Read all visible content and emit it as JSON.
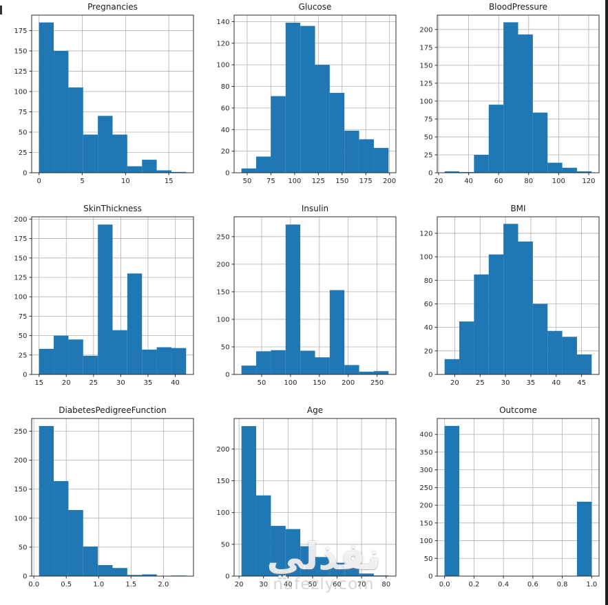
{
  "page": {
    "background": "#ffffff"
  },
  "style": {
    "bar_color": "#1f77b4",
    "grid_color": "#b0b0b0",
    "spine_color": "#2b2b2b",
    "tick_color": "#262626",
    "title_color": "#1a1a1a"
  },
  "watermark": {
    "arabic": "نفذلي",
    "domain": "nafezly.com"
  },
  "chart_data": [
    {
      "type": "bar",
      "title": "Pregnancies",
      "bin_start": 0,
      "bin_end": 17,
      "counts": [
        185,
        150,
        105,
        47,
        70,
        47,
        8,
        16,
        3,
        1
      ],
      "x_ticks": [
        0,
        5,
        10,
        15
      ],
      "x_tick_labels": [
        "0",
        "5",
        "10",
        "15"
      ],
      "y_ticks": [
        0,
        25,
        50,
        75,
        100,
        125,
        150,
        175
      ],
      "ylim": [
        0,
        194
      ],
      "grid": true
    },
    {
      "type": "bar",
      "title": "Glucose",
      "bin_start": 44,
      "bin_end": 199,
      "counts": [
        4,
        15,
        71,
        139,
        136,
        100,
        74,
        39,
        31,
        23
      ],
      "x_ticks": [
        50,
        75,
        100,
        125,
        150,
        175,
        200
      ],
      "x_tick_labels": [
        "50",
        "75",
        "100",
        "125",
        "150",
        "175",
        "200"
      ],
      "y_ticks": [
        0,
        20,
        40,
        60,
        80,
        100,
        120,
        140
      ],
      "ylim": [
        0,
        146
      ],
      "grid": true
    },
    {
      "type": "bar",
      "title": "BloodPressure",
      "bin_start": 24,
      "bin_end": 122,
      "counts": [
        2,
        1,
        25,
        95,
        210,
        193,
        84,
        14,
        7,
        2
      ],
      "x_ticks": [
        20,
        40,
        60,
        80,
        100,
        120
      ],
      "x_tick_labels": [
        "20",
        "40",
        "60",
        "80",
        "100",
        "120"
      ],
      "y_ticks": [
        0,
        25,
        50,
        75,
        100,
        125,
        150,
        175,
        200
      ],
      "ylim": [
        0,
        220
      ],
      "grid": true
    },
    {
      "type": "bar",
      "title": "SkinThickness",
      "bin_start": 15,
      "bin_end": 42,
      "counts": [
        33,
        50,
        45,
        24,
        193,
        57,
        130,
        32,
        35,
        34
      ],
      "x_ticks": [
        15,
        20,
        25,
        30,
        35,
        40
      ],
      "x_tick_labels": [
        "15",
        "20",
        "25",
        "30",
        "35",
        "40"
      ],
      "y_ticks": [
        0,
        25,
        50,
        75,
        100,
        125,
        150,
        175,
        200
      ],
      "ylim": [
        0,
        203
      ],
      "grid": true
    },
    {
      "type": "bar",
      "title": "Insulin",
      "bin_start": 15,
      "bin_end": 270,
      "counts": [
        16,
        42,
        44,
        272,
        43,
        31,
        153,
        17,
        5,
        6
      ],
      "x_ticks": [
        50,
        100,
        150,
        200,
        250
      ],
      "x_tick_labels": [
        "50",
        "100",
        "150",
        "200",
        "250"
      ],
      "y_ticks": [
        0,
        50,
        100,
        150,
        200,
        250
      ],
      "ylim": [
        0,
        286
      ],
      "grid": true
    },
    {
      "type": "bar",
      "title": "BMI",
      "bin_start": 18,
      "bin_end": 47,
      "counts": [
        13,
        45,
        85,
        102,
        128,
        113,
        60,
        37,
        32,
        17
      ],
      "x_ticks": [
        20,
        25,
        30,
        35,
        40,
        45
      ],
      "x_tick_labels": [
        "20",
        "25",
        "30",
        "35",
        "40",
        "45"
      ],
      "y_ticks": [
        0,
        20,
        40,
        60,
        80,
        100,
        120
      ],
      "ylim": [
        0,
        134
      ],
      "grid": true
    },
    {
      "type": "bar",
      "title": "DiabetesPedigreeFunction",
      "bin_start": 0.08,
      "bin_end": 2.35,
      "counts": [
        259,
        164,
        114,
        51,
        19,
        14,
        2,
        3,
        0,
        1
      ],
      "x_ticks": [
        0.0,
        0.5,
        1.0,
        1.5,
        2.0
      ],
      "x_tick_labels": [
        "0.0",
        "0.5",
        "1.0",
        "1.5",
        "2.0"
      ],
      "y_ticks": [
        0,
        50,
        100,
        150,
        200,
        250
      ],
      "ylim": [
        0,
        272
      ],
      "grid": true
    },
    {
      "type": "bar",
      "title": "Age",
      "bin_start": 21,
      "bin_end": 81,
      "counts": [
        236,
        127,
        79,
        74,
        47,
        30,
        21,
        13,
        4,
        1
      ],
      "x_ticks": [
        20,
        30,
        40,
        50,
        60,
        70,
        80
      ],
      "x_tick_labels": [
        "20",
        "30",
        "40",
        "50",
        "60",
        "70",
        "80"
      ],
      "y_ticks": [
        0,
        50,
        100,
        150,
        200
      ],
      "ylim": [
        0,
        248
      ],
      "grid": true
    },
    {
      "type": "bar",
      "title": "Outcome",
      "bin_start": 0,
      "bin_end": 1,
      "counts": [
        424,
        0,
        0,
        0,
        0,
        0,
        0,
        0,
        0,
        210
      ],
      "x_ticks": [
        0.0,
        0.2,
        0.4,
        0.6,
        0.8,
        1.0
      ],
      "x_tick_labels": [
        "0.0",
        "0.2",
        "0.4",
        "0.6",
        "0.8",
        "1.0"
      ],
      "y_ticks": [
        0,
        50,
        100,
        150,
        200,
        250,
        300,
        350,
        400
      ],
      "ylim": [
        0,
        445
      ],
      "grid": true
    }
  ]
}
